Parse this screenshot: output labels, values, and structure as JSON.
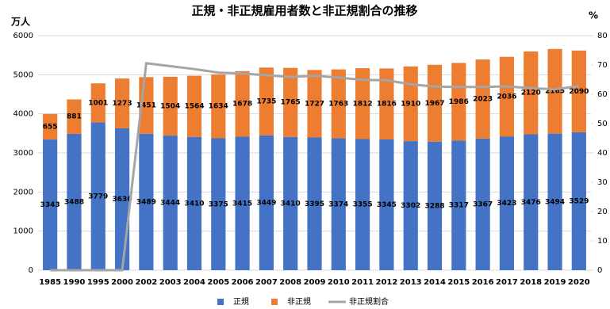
{
  "chart_data": {
    "type": "bar-line",
    "title": "正規・非正規雇用者数と非正規割合の推移",
    "y_label": "万人",
    "y2_label": "%",
    "categories": [
      "1985",
      "1990",
      "1995",
      "2000",
      "2002",
      "2003",
      "2004",
      "2005",
      "2006",
      "2007",
      "2008",
      "2009",
      "2010",
      "2011",
      "2012",
      "2013",
      "2014",
      "2015",
      "2016",
      "2017",
      "2018",
      "2019",
      "2020"
    ],
    "series": [
      {
        "name": "正規",
        "color": "#4472c4",
        "values": [
          3343,
          3488,
          3779,
          3630,
          3489,
          3444,
          3410,
          3375,
          3415,
          3449,
          3410,
          3395,
          3374,
          3355,
          3345,
          3302,
          3288,
          3317,
          3367,
          3423,
          3476,
          3494,
          3529
        ]
      },
      {
        "name": "非正規",
        "color": "#ed7d31",
        "values": [
          655,
          881,
          1001,
          1273,
          1451,
          1504,
          1564,
          1634,
          1678,
          1735,
          1765,
          1727,
          1763,
          1812,
          1816,
          1910,
          1967,
          1986,
          2023,
          2036,
          2120,
          2165,
          2090
        ]
      },
      {
        "name": "非正規割合",
        "color": "#a5a5a5",
        "axis": "y2",
        "values": [
          0,
          0,
          0,
          0,
          70.6,
          69.6,
          68.6,
          67.4,
          67.1,
          66.5,
          65.9,
          66.3,
          65.7,
          64.9,
          64.8,
          63.4,
          62.6,
          62.5,
          62.5,
          62.7,
          62.1,
          61.7,
          62.8
        ]
      }
    ],
    "ylim": [
      0,
      6000
    ],
    "yticks": [
      0,
      1000,
      2000,
      3000,
      4000,
      5000,
      6000
    ],
    "y2lim": [
      0,
      80
    ],
    "y2ticks": [
      0,
      10,
      20,
      30,
      40,
      50,
      60,
      70,
      80
    ],
    "legend": "bottom"
  }
}
